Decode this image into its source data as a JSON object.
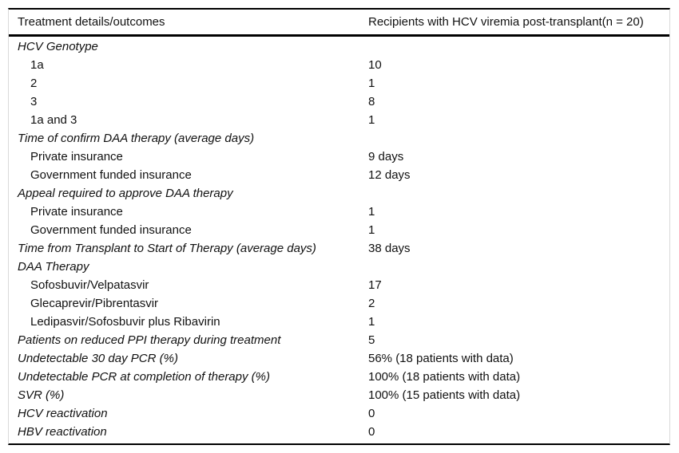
{
  "table": {
    "columns": [
      {
        "label": "Treatment details/outcomes"
      },
      {
        "label": "Recipients with HCV viremia post-transplant(n = 20)"
      }
    ],
    "rows": [
      {
        "label": "HCV Genotype",
        "value": "",
        "style": "category"
      },
      {
        "label": "1a",
        "value": "10",
        "style": "sub"
      },
      {
        "label": "2",
        "value": "1",
        "style": "sub"
      },
      {
        "label": "3",
        "value": "8",
        "style": "sub"
      },
      {
        "label": "1a and 3",
        "value": "1",
        "style": "sub"
      },
      {
        "label": "Time of confirm DAA therapy (average days)",
        "value": "",
        "style": "category"
      },
      {
        "label": "Private insurance",
        "value": "9 days",
        "style": "sub"
      },
      {
        "label": "Government funded insurance",
        "value": "12 days",
        "style": "sub"
      },
      {
        "label": "Appeal required to approve DAA therapy",
        "value": "",
        "style": "category"
      },
      {
        "label": "Private insurance",
        "value": "1",
        "style": "sub"
      },
      {
        "label": "Government funded insurance",
        "value": "1",
        "style": "sub"
      },
      {
        "label": "Time from Transplant to Start of Therapy (average days)",
        "value": "38 days",
        "style": "category"
      },
      {
        "label": "DAA Therapy",
        "value": "",
        "style": "category"
      },
      {
        "label": "Sofosbuvir/Velpatasvir",
        "value": "17",
        "style": "sub"
      },
      {
        "label": "Glecaprevir/Pibrentasvir",
        "value": "2",
        "style": "sub"
      },
      {
        "label": "Ledipasvir/Sofosbuvir plus Ribavirin",
        "value": "1",
        "style": "sub"
      },
      {
        "label": "Patients on reduced PPI therapy during treatment",
        "value": "5",
        "style": "category"
      },
      {
        "label": "Undetectable 30 day PCR (%)",
        "value": "56% (18 patients with data)",
        "style": "category"
      },
      {
        "label": "Undetectable PCR at completion of therapy (%)",
        "value": "100% (18 patients with data)",
        "style": "category"
      },
      {
        "label": "SVR (%)",
        "value": "100% (15 patients with data)",
        "style": "category"
      },
      {
        "label": "HCV reactivation",
        "value": "0",
        "style": "category"
      },
      {
        "label": "HBV reactivation",
        "value": "0",
        "style": "category"
      }
    ]
  },
  "colors": {
    "rule": "#000000",
    "side_rule": "#d9d9d9",
    "text": "#111111",
    "background": "#ffffff"
  }
}
